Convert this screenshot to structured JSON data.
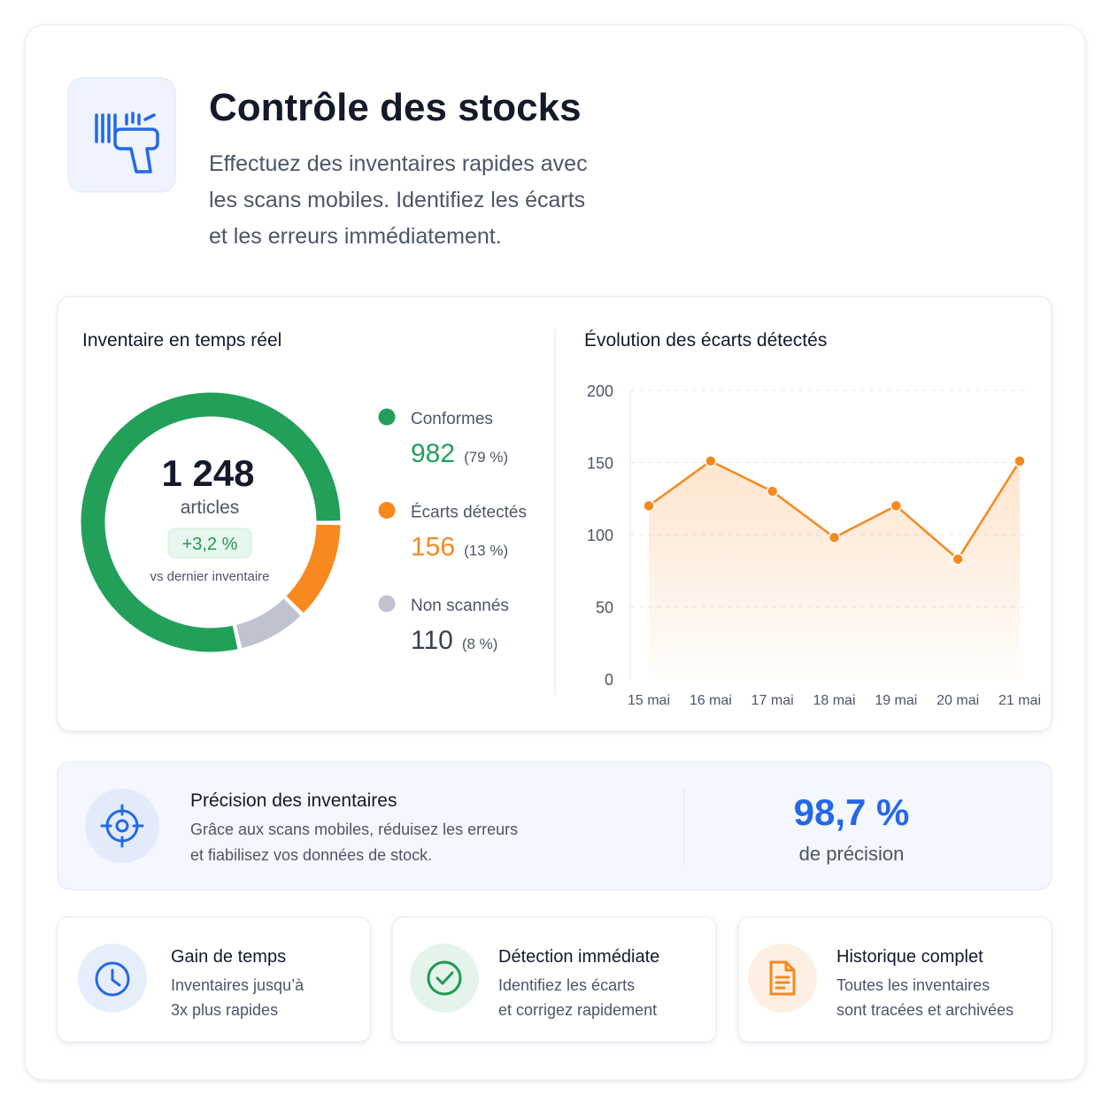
{
  "header": {
    "title": "Contrôle des stocks",
    "description_lines": [
      "Effectuez des inventaires rapides avec",
      "les scans mobiles. Identifiez les écarts",
      "et les erreurs immédiatement."
    ]
  },
  "chart_data": [
    {
      "type": "pie",
      "title": "Inventaire en temps réel",
      "center_label": "1 248",
      "center_unit": "articles",
      "change": "+3,2 %",
      "change_note": "vs dernier inventaire",
      "categories": [
        "Conformes",
        "Écarts détectés",
        "Non scannés"
      ],
      "values": [
        982,
        156,
        110
      ],
      "percent_labels": [
        "(79 %)",
        "(13 %)",
        "(8 %)"
      ],
      "colors": [
        "#22a05a",
        "#f7891f",
        "#bfc3cf"
      ]
    },
    {
      "type": "line",
      "title": "Évolution des écarts détectés",
      "categories": [
        "15 mai",
        "16 mai",
        "17 mai",
        "18 mai",
        "19 mai",
        "20 mai",
        "21 mai"
      ],
      "values": [
        120,
        151,
        130,
        98,
        120,
        83,
        151
      ],
      "color": "#f7891f",
      "ylim": [
        0,
        200
      ],
      "yticks": [
        0,
        50,
        100,
        150,
        200
      ],
      "grid": true
    }
  ],
  "precision": {
    "title": "Précision des inventaires",
    "description_lines": [
      "Grâce aux scans mobiles, réduisez les erreurs",
      "et fiabilisez vos données de stock."
    ],
    "value": "98,7 %",
    "caption": "de précision"
  },
  "features": [
    {
      "title": "Gain de temps",
      "lines": [
        "Inventaires jusqu’à",
        "3x plus rapides"
      ]
    },
    {
      "title": "Détection immédiate",
      "lines": [
        "Identifiez les écarts",
        "et corrigez rapidement"
      ]
    },
    {
      "title": "Historique complet",
      "lines": [
        "Toutes les inventaires",
        "sont tracées et archivées"
      ]
    }
  ]
}
